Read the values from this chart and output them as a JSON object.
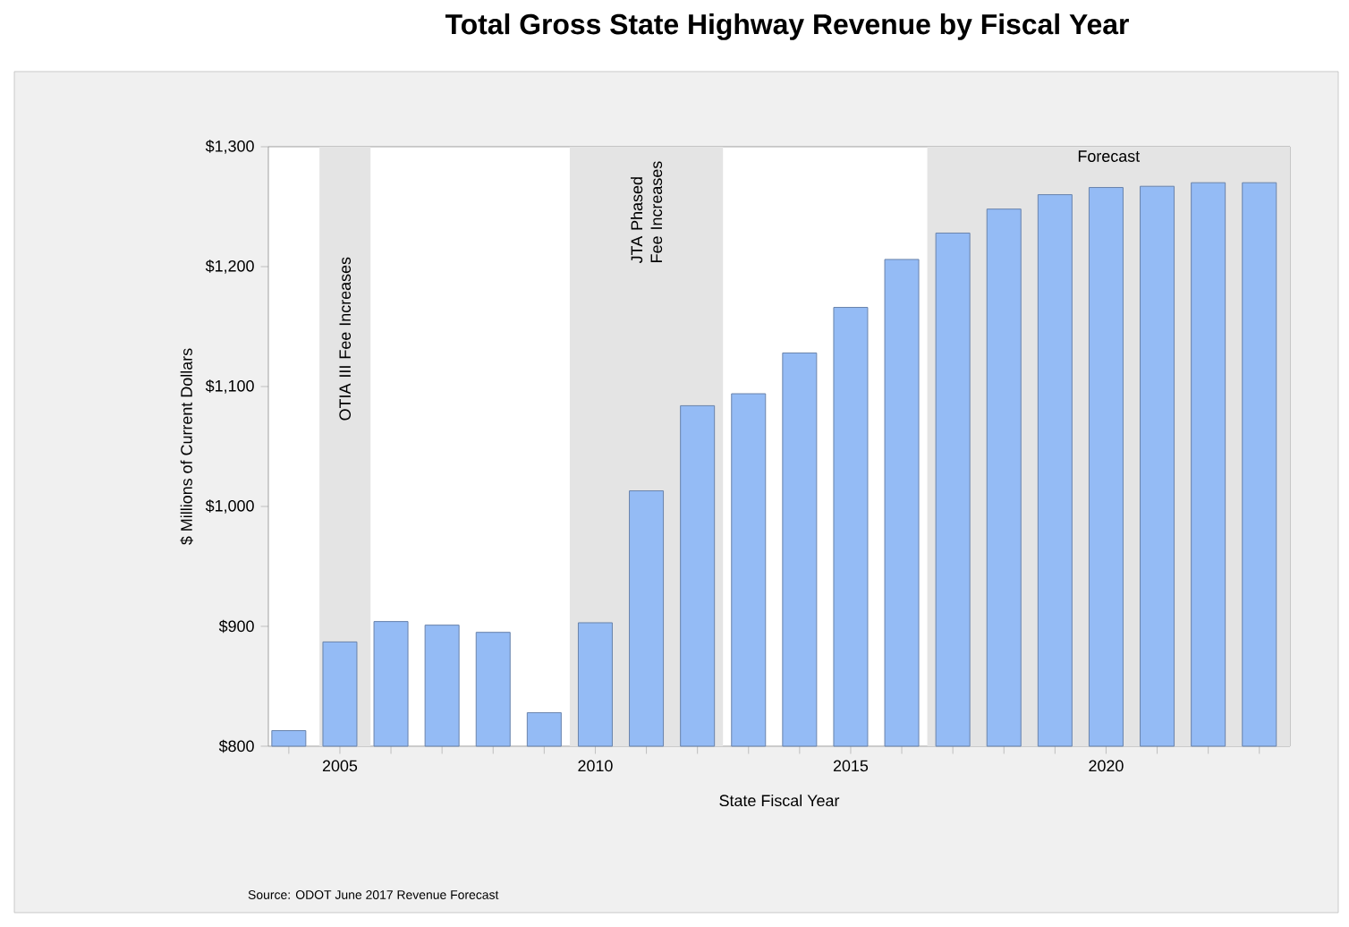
{
  "chart_data": {
    "type": "bar",
    "title": "Total Gross State Highway Revenue by Fiscal Year",
    "xlabel": "State Fiscal Year",
    "ylabel": "$ Millions of Current Dollars",
    "annotations": [
      "Source: ODOT June 2017 Revenue Forecast"
    ],
    "x": [
      2004,
      2005,
      2006,
      2007,
      2008,
      2009,
      2010,
      2011,
      2012,
      2013,
      2014,
      2015,
      2016,
      2017,
      2018,
      2019,
      2020,
      2021,
      2022,
      2023
    ],
    "values": [
      813,
      887,
      904,
      901,
      895,
      828,
      903,
      1013,
      1084,
      1094,
      1128,
      1166,
      1206,
      1228,
      1248,
      1260,
      1266,
      1267,
      1270,
      1270
    ],
    "color": "#94bbf5",
    "xlim": [
      2003.6,
      2023.6
    ],
    "xticks": [
      {
        "value": 2004,
        "label": null
      },
      2005,
      {
        "value": 2006,
        "label": null
      },
      {
        "value": 2007,
        "label": null
      },
      {
        "value": 2008,
        "label": null
      },
      {
        "value": 2009,
        "label": null
      },
      2010,
      {
        "value": 2011,
        "label": null
      },
      {
        "value": 2012,
        "label": null
      },
      {
        "value": 2013,
        "label": null
      },
      {
        "value": 2014,
        "label": null
      },
      2015,
      {
        "value": 2016,
        "label": null
      },
      {
        "value": 2017,
        "label": null
      },
      {
        "value": 2018,
        "label": null
      },
      {
        "value": 2019,
        "label": null
      },
      2020,
      {
        "value": 2021,
        "label": null
      },
      {
        "value": 2022,
        "label": null
      },
      {
        "value": 2023,
        "label": null
      }
    ],
    "ylim": [
      800,
      1300
    ],
    "yticks": [
      {
        "value": 800,
        "label": "$800"
      },
      {
        "value": 900,
        "label": "$900"
      },
      {
        "value": 1000,
        "label": "$1,000"
      },
      {
        "value": 1100,
        "label": "$1,100"
      },
      {
        "value": 1200,
        "label": "$1,200"
      },
      {
        "value": 1300,
        "label": "$1,300"
      }
    ],
    "bands": [
      {
        "axis": "x",
        "from": 2004.6,
        "to": 2005.6,
        "label": "OTIA III Fee Increases",
        "color": "#e4e4e4"
      },
      {
        "axis": "x",
        "from": 2009.5,
        "to": 2012.5,
        "label": "JTA Phased Fee Increases",
        "color": "#e4e4e4"
      },
      {
        "axis": "x",
        "from": 2016.5,
        "to": 2023.6,
        "label": "Forecast",
        "color": "#e4e4e4"
      }
    ],
    "grid": false
  }
}
